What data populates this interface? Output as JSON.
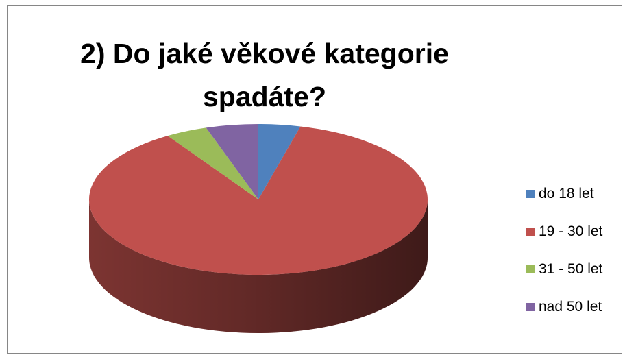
{
  "chart_data": {
    "type": "pie",
    "title": "2) Do jaké věkové kategorie spadáte?",
    "categories": [
      "do 18 let",
      "19 - 30 let",
      "31 - 50 let",
      "nad 50 let"
    ],
    "values": [
      4,
      87,
      4,
      5
    ],
    "colors": [
      "#4F81BD",
      "#C0504D",
      "#9BBB59",
      "#8064A2"
    ],
    "style": "3d",
    "legend_position": "right"
  }
}
